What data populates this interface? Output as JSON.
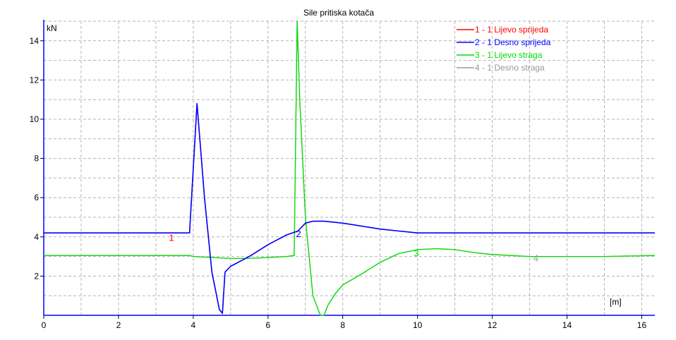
{
  "chart_data": {
    "type": "line",
    "title": "Sile pritiska kotača",
    "ylabel": "kN",
    "xlabel": "[m]",
    "xlim": [
      0,
      16.35
    ],
    "ylim": [
      0,
      15
    ],
    "xticks": [
      0,
      2,
      4,
      6,
      8,
      10,
      12,
      14,
      16
    ],
    "yticks": [
      2,
      4,
      6,
      8,
      10,
      12,
      14
    ],
    "grid": true,
    "legend": "top-right",
    "series": [
      {
        "name": "1 - 1 Lijevo sprijeda",
        "label": "1",
        "label_at": [
          3.35,
          3.8
        ],
        "color": "#ff0000",
        "x": [
          0,
          3.9,
          4.1,
          4.3,
          4.5,
          4.7,
          4.78,
          4.85,
          5.0,
          5.5,
          6.0,
          6.5,
          6.8,
          7.0,
          7.2,
          7.5,
          8.0,
          8.5,
          9.0,
          9.5,
          10.0,
          11.0,
          12.0,
          14.0,
          16.35
        ],
        "values": [
          4.2,
          4.2,
          10.8,
          6.0,
          2.2,
          0.3,
          0.1,
          2.2,
          2.5,
          3.0,
          3.6,
          4.1,
          4.3,
          4.7,
          4.8,
          4.8,
          4.7,
          4.55,
          4.4,
          4.3,
          4.2,
          4.2,
          4.2,
          4.2,
          4.2
        ]
      },
      {
        "name": "2 - 1 Desno sprijeda",
        "label": "2",
        "label_at": [
          6.75,
          4.0
        ],
        "color": "#0000ff",
        "x": [
          0,
          3.9,
          4.1,
          4.3,
          4.5,
          4.7,
          4.78,
          4.85,
          5.0,
          5.5,
          6.0,
          6.5,
          6.8,
          7.0,
          7.2,
          7.5,
          8.0,
          8.5,
          9.0,
          9.5,
          10.0,
          11.0,
          12.0,
          14.0,
          16.35
        ],
        "values": [
          4.2,
          4.2,
          10.8,
          6.0,
          2.2,
          0.3,
          0.1,
          2.2,
          2.5,
          3.0,
          3.6,
          4.1,
          4.3,
          4.7,
          4.8,
          4.8,
          4.7,
          4.55,
          4.4,
          4.3,
          4.2,
          4.2,
          4.2,
          4.2,
          4.2
        ]
      },
      {
        "name": "3 - 1 Lijevo straga",
        "label": "3",
        "label_at": [
          9.9,
          3.0
        ],
        "color": "#00e000",
        "x": [
          0,
          3.9,
          4.0,
          4.5,
          5.0,
          5.5,
          6.0,
          6.5,
          6.7,
          6.78,
          6.85,
          7.0,
          7.2,
          7.4,
          7.5,
          7.6,
          7.8,
          8.0,
          8.5,
          9.0,
          9.5,
          10.0,
          10.5,
          11.0,
          11.5,
          12.0,
          13.0,
          14.0,
          15.0,
          16.35
        ],
        "values": [
          3.05,
          3.05,
          3.0,
          2.95,
          2.9,
          2.9,
          2.95,
          3.0,
          3.05,
          15.0,
          11.0,
          5.0,
          1.0,
          0.0,
          0.0,
          0.5,
          1.1,
          1.55,
          2.1,
          2.7,
          3.15,
          3.35,
          3.4,
          3.35,
          3.2,
          3.1,
          3.0,
          3.0,
          3.0,
          3.05
        ]
      },
      {
        "name": "4 - 1 Desno straga",
        "label": "4",
        "label_at": [
          13.1,
          2.75
        ],
        "color": "#999999",
        "x": [
          0,
          3.9,
          4.0,
          4.5,
          5.0,
          5.5,
          6.0,
          6.5,
          6.7,
          6.78,
          6.85,
          7.0,
          7.2,
          7.4,
          7.5,
          7.6,
          7.8,
          8.0,
          8.5,
          9.0,
          9.5,
          10.0,
          10.5,
          11.0,
          11.5,
          12.0,
          13.0,
          14.0,
          15.0,
          16.35
        ],
        "values": [
          3.05,
          3.05,
          3.0,
          2.95,
          2.9,
          2.9,
          2.95,
          3.0,
          3.05,
          15.0,
          11.0,
          5.0,
          1.0,
          0.0,
          0.0,
          0.5,
          1.1,
          1.55,
          2.1,
          2.7,
          3.15,
          3.35,
          3.4,
          3.35,
          3.2,
          3.1,
          3.0,
          3.0,
          3.0,
          3.05
        ]
      }
    ]
  }
}
